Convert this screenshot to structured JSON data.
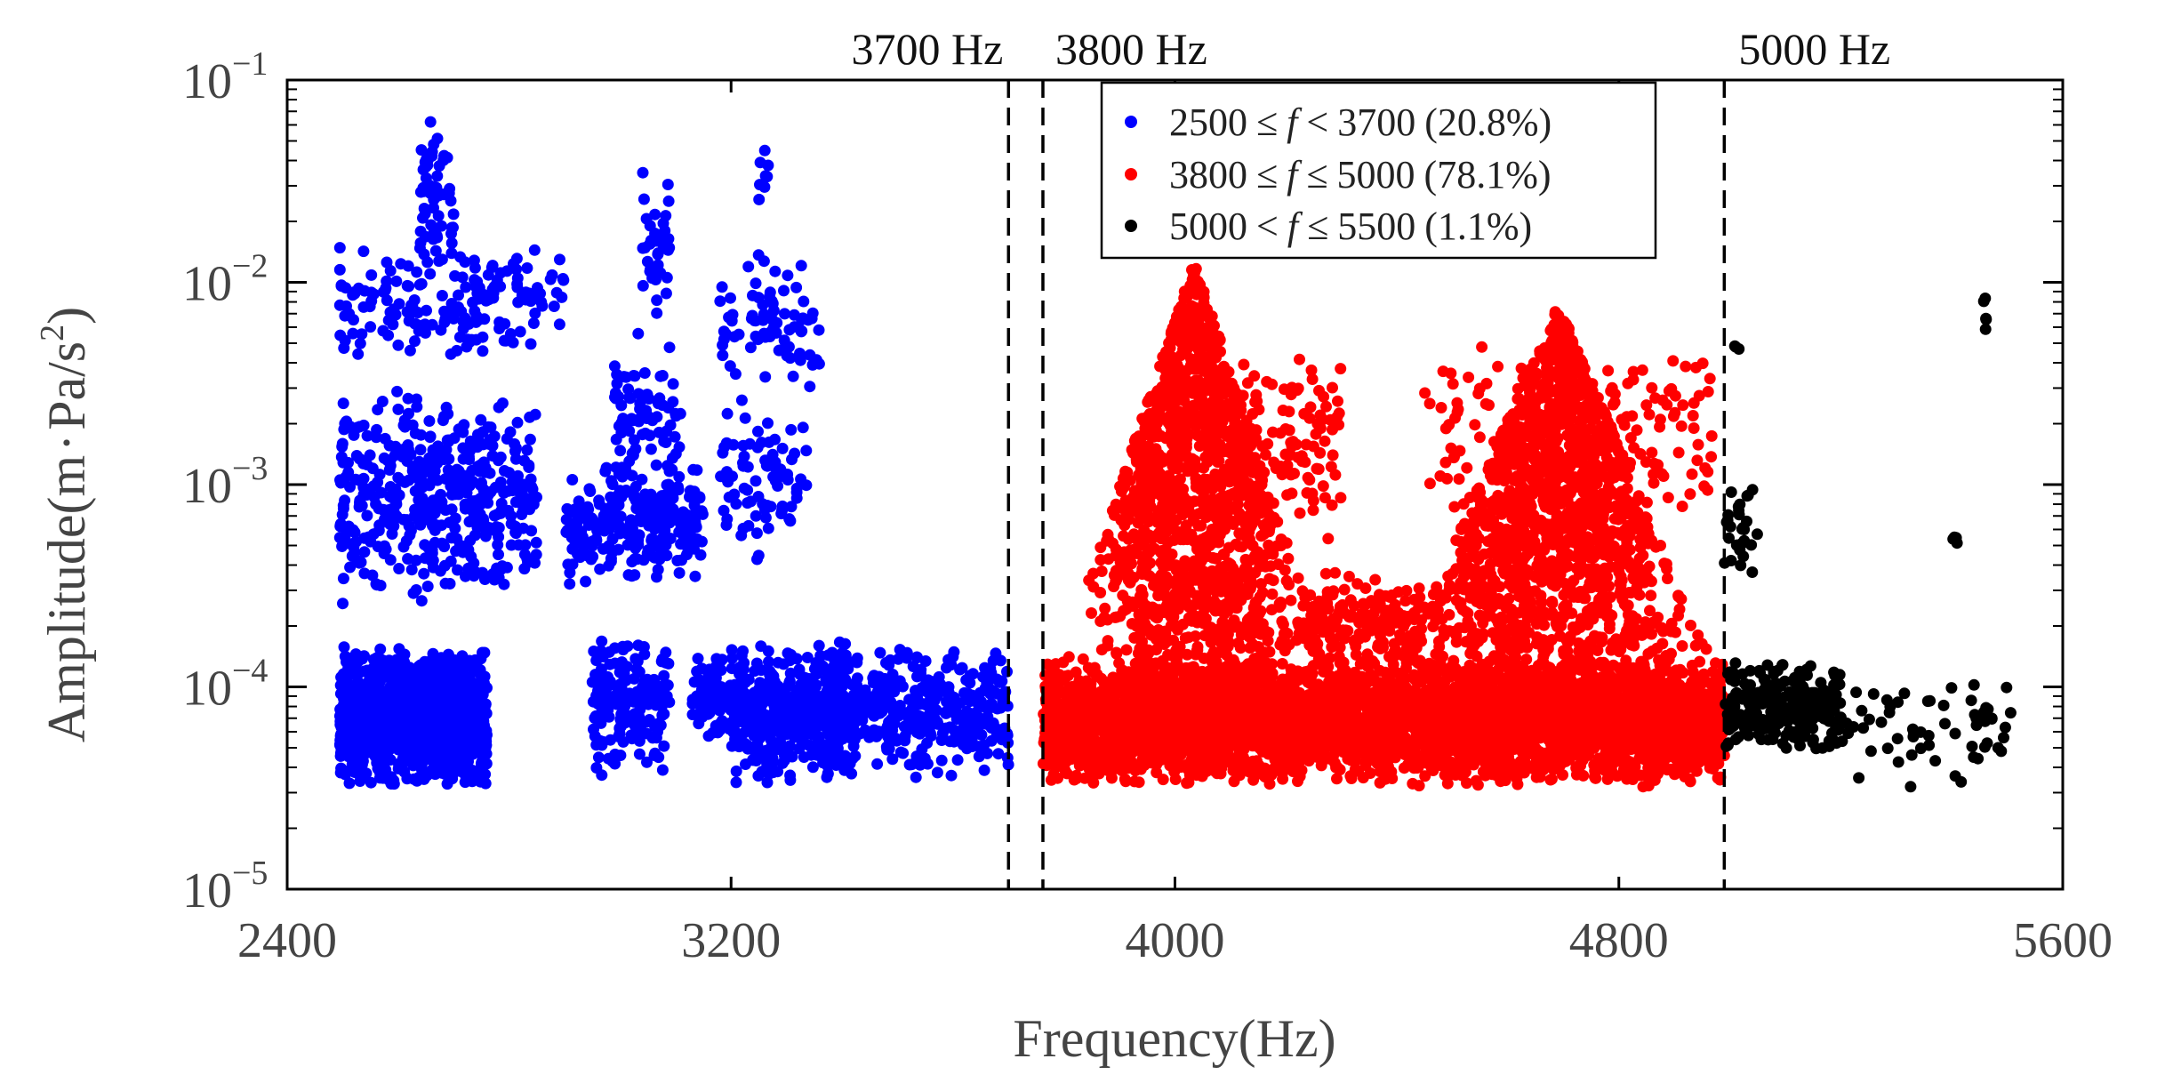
{
  "chart_data": {
    "type": "scatter",
    "title": "",
    "xlabel": "Frequency(Hz)",
    "ylabel_parts": {
      "prefix": "Amplitude(m",
      "dot": "·",
      "mid": "Pa/s",
      "sup": "2",
      "suffix": ")"
    },
    "yscale": "log",
    "xlim": [
      2400,
      5600
    ],
    "ylim": [
      1e-05,
      0.1
    ],
    "x_ticks": [
      2400,
      3200,
      4000,
      4800,
      5600
    ],
    "x_tick_labels": [
      "2400",
      "3200",
      "4000",
      "4800",
      "5600"
    ],
    "y_ticks": [
      {
        "value": 1e-05,
        "base": "10",
        "exp": "−5"
      },
      {
        "value": 0.0001,
        "base": "10",
        "exp": "−4"
      },
      {
        "value": 0.001,
        "base": "10",
        "exp": "−3"
      },
      {
        "value": 0.01,
        "base": "10",
        "exp": "−2"
      },
      {
        "value": 0.1,
        "base": "10",
        "exp": "−1"
      }
    ],
    "vlines": [
      {
        "x": 3700,
        "label": "3700 Hz"
      },
      {
        "x": 3762,
        "label": "3800 Hz"
      },
      {
        "x": 4990,
        "label": "5000 Hz"
      }
    ],
    "legend_position": "top-center",
    "series": [
      {
        "name": "2500 ≤ f < 3700 (20.8%)",
        "legend": {
          "lo": "2500",
          "op1": "≤",
          "var": "f",
          "op2": "<",
          "hi": "3700",
          "pct": "(20.8%)"
        },
        "color": "#0000ff",
        "x_range": [
          2495,
          3700
        ],
        "clusters": [
          {
            "x": [
              2495,
              2760
            ],
            "ylog": [
              -4.5,
              -3.8
            ],
            "n": 1500
          },
          {
            "x": [
              2495,
              2850
            ],
            "ylog": [
              -3.6,
              -2.5
            ],
            "n": 450
          },
          {
            "x": [
              2490,
              2900
            ],
            "ylog": [
              -2.4,
              -1.8
            ],
            "n": 180
          },
          {
            "x": [
              2640,
              2700
            ],
            "ylog": [
              -2.0,
              -1.15
            ],
            "n": 60
          },
          {
            "x": [
              2900,
              3150
            ],
            "ylog": [
              -3.5,
              -2.9
            ],
            "n": 240
          },
          {
            "x": [
              2950,
              3090
            ],
            "ylog": [
              -4.45,
              -3.7
            ],
            "n": 170
          },
          {
            "x": [
              2990,
              3110
            ],
            "ylog": [
              -3.2,
              -2.2
            ],
            "n": 90
          },
          {
            "x": [
              3040,
              3090
            ],
            "ylog": [
              -2.2,
              -1.4
            ],
            "n": 40
          },
          {
            "x": [
              3130,
              3210
            ],
            "ylog": [
              -4.3,
              -3.85
            ],
            "n": 90
          },
          {
            "x": [
              3200,
              3410
            ],
            "ylog": [
              -4.5,
              -3.75
            ],
            "n": 450
          },
          {
            "x": [
              3380,
              3700
            ],
            "ylog": [
              -4.45,
              -3.8
            ],
            "n": 380
          },
          {
            "x": [
              3180,
              3340
            ],
            "ylog": [
              -3.4,
              -2.6
            ],
            "n": 80
          },
          {
            "x": [
              3180,
              3360
            ],
            "ylog": [
              -2.6,
              -1.85
            ],
            "n": 80
          },
          {
            "x": [
              3250,
              3270
            ],
            "ylog": [
              -1.6,
              -1.3
            ],
            "n": 8
          }
        ]
      },
      {
        "name": "3800 ≤ f ≤ 5000 (78.1%)",
        "legend": {
          "lo": "3800",
          "op1": "≤",
          "var": "f",
          "op2": "≤",
          "hi": "5000",
          "pct": "(78.1%)"
        },
        "color": "#ff0000",
        "x_range": [
          3762,
          4990
        ],
        "clusters": [
          {
            "x": [
              3762,
              4990
            ],
            "ylog": [
              -4.5,
              -3.85
            ],
            "n": 3800
          },
          {
            "peak": 4035,
            "width": 70,
            "ylog_top": -1.9,
            "n": 1500
          },
          {
            "peak": 4690,
            "width": 90,
            "ylog_top": -2.1,
            "n": 1700
          },
          {
            "x": [
              4100,
              4300
            ],
            "ylog": [
              -3.3,
              -2.3
            ],
            "n": 120
          },
          {
            "x": [
              4450,
              4980
            ],
            "ylog": [
              -3.2,
              -2.3
            ],
            "n": 180
          },
          {
            "x": [
              4230,
              4450
            ],
            "ylog": [
              -4.0,
              -3.4
            ],
            "n": 200
          }
        ]
      },
      {
        "name": "5000 < f ≤ 5500 (1.1%)",
        "legend": {
          "lo": "5000",
          "op1": "<",
          "var": "f",
          "op2": "≤",
          "hi": "5500",
          "pct": "(1.1%)"
        },
        "color": "#000000",
        "x_range": [
          4990,
          5510
        ],
        "clusters": [
          {
            "x": [
              4990,
              5200
            ],
            "ylog": [
              -4.35,
              -3.85
            ],
            "n": 230
          },
          {
            "x": [
              4990,
              5050
            ],
            "ylog": [
              -3.5,
              -2.95
            ],
            "n": 30
          },
          {
            "x": [
              5200,
              5510
            ],
            "ylog": [
              -4.5,
              -3.95
            ],
            "n": 60
          },
          {
            "x": [
              5400,
              5420
            ],
            "ylog": [
              -3.3,
              -3.2
            ],
            "n": 4
          },
          {
            "x": [
              5005,
              5020
            ],
            "ylog": [
              -2.35,
              -2.3
            ],
            "n": 3
          },
          {
            "x": [
              5450,
              5465
            ],
            "ylog": [
              -2.3,
              -2.05
            ],
            "n": 5
          }
        ]
      }
    ]
  }
}
